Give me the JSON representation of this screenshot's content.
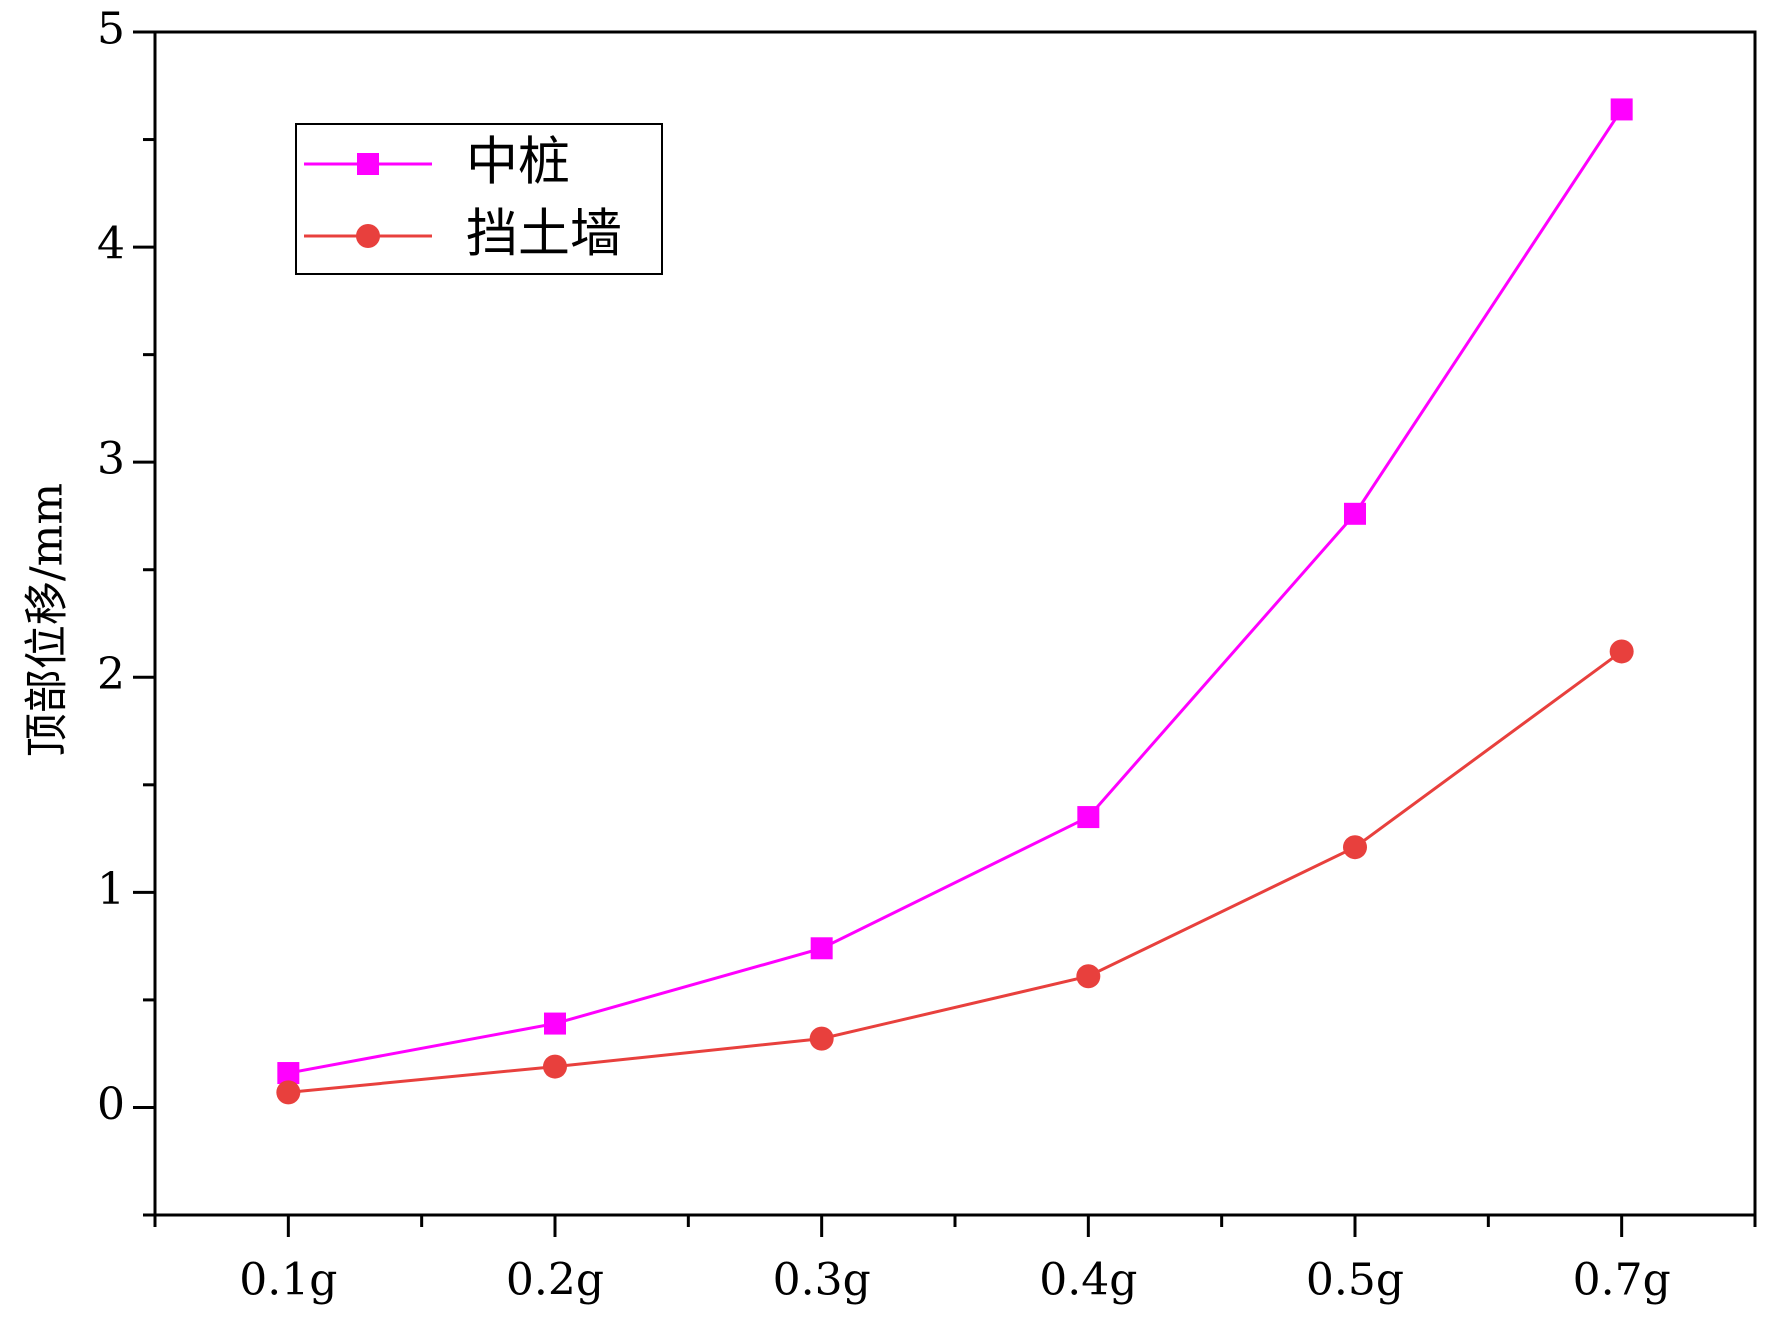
{
  "chart_data": {
    "type": "line",
    "y_label": "顶部位移/mm",
    "categories": [
      "0.1g",
      "0.2g",
      "0.3g",
      "0.4g",
      "0.5g",
      "0.7g"
    ],
    "series": [
      {
        "name": "中桩",
        "color": "#ff00ff",
        "marker": "square",
        "values": [
          0.16,
          0.39,
          0.74,
          1.35,
          2.76,
          4.64
        ]
      },
      {
        "name": "挡土墙",
        "color": "#e8403d",
        "marker": "circle",
        "values": [
          0.07,
          0.19,
          0.32,
          0.61,
          1.21,
          2.12
        ]
      }
    ],
    "ylim": [
      -0.5,
      5
    ],
    "yticks": [
      0,
      1,
      2,
      3,
      4,
      5
    ],
    "legend": "upper-left",
    "grid": false
  }
}
